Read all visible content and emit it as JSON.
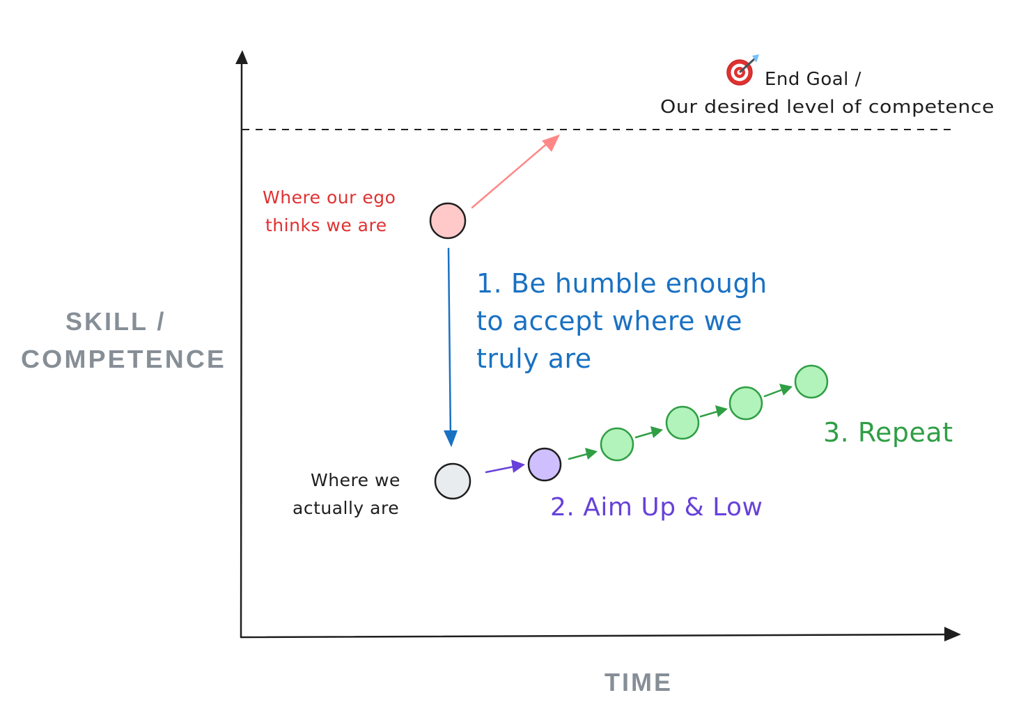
{
  "axes": {
    "y_label_line1": "SKILL /",
    "y_label_line2": "COMPETENCE",
    "x_label": "TIME"
  },
  "goal": {
    "icon": "target-dart-icon",
    "line1": "End Goal /",
    "line2": "Our desired level of competence"
  },
  "ego": {
    "line1": "Where our ego",
    "line2": "thinks we are"
  },
  "actual": {
    "line1": "Where we",
    "line2": "actually are"
  },
  "step1": {
    "line1": "1. Be humble enough",
    "line2": "to accept where we",
    "line3": "truly are"
  },
  "step2": {
    "label": "2. Aim Up & Low"
  },
  "step3": {
    "label": "3. Repeat"
  },
  "colors": {
    "ego": "#e03131",
    "ego_fill": "#ffc9c9",
    "ego_arrow": "#ff8787",
    "step1": "#1971c2",
    "step2": "#6741d9",
    "step2_fill": "#d0bfff",
    "step3": "#2f9e44",
    "step3_fill": "#b2f2bb",
    "actual_fill": "#e9ecef",
    "axis_text": "#868e96",
    "ink": "#1e1e1e"
  }
}
